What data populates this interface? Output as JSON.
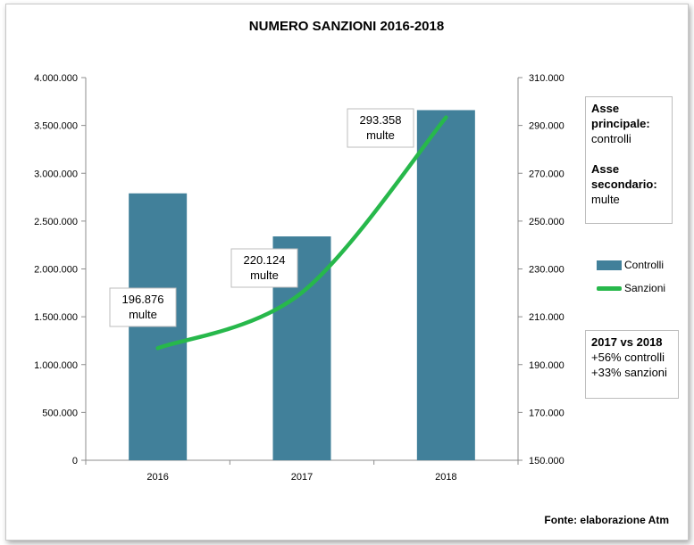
{
  "chart_data": {
    "type": "bar",
    "title": "NUMERO SANZIONI 2016-2018",
    "categories": [
      "2016",
      "2017",
      "2018"
    ],
    "series": [
      {
        "name": "Controlli",
        "kind": "bar",
        "axis": "primary",
        "color": "#41809a",
        "values": [
          2790000,
          2340000,
          3660000
        ]
      },
      {
        "name": "Sanzioni",
        "kind": "line",
        "axis": "secondary",
        "color": "#27b84b",
        "values": [
          196876,
          220124,
          293358
        ]
      }
    ],
    "y_primary": {
      "ylim": [
        0,
        4000000
      ],
      "ticks": [
        "0",
        "500.000",
        "1.000.000",
        "1.500.000",
        "2.000.000",
        "2.500.000",
        "3.000.000",
        "3.500.000",
        "4.000.000"
      ]
    },
    "y_secondary": {
      "ylim": [
        150000,
        310000
      ],
      "ticks": [
        "150.000",
        "170.000",
        "190.000",
        "210.000",
        "230.000",
        "250.000",
        "270.000",
        "290.000",
        "310.000"
      ]
    },
    "data_labels": [
      {
        "value": "196.876",
        "unit": "multe"
      },
      {
        "value": "220.124",
        "unit": "multe"
      },
      {
        "value": "293.358",
        "unit": "multe"
      }
    ],
    "legend_placement": "right",
    "grid": false
  },
  "notes": {
    "axis_primary_title": "Asse principale:",
    "axis_primary_value": "controlli",
    "axis_secondary_title": "Asse secondario:",
    "axis_secondary_value": "multe",
    "compare_title": "2017 vs 2018",
    "compare_line1": "+56% controlli",
    "compare_line2": "+33% sanzioni"
  },
  "source": "Fonte: elaborazione Atm"
}
